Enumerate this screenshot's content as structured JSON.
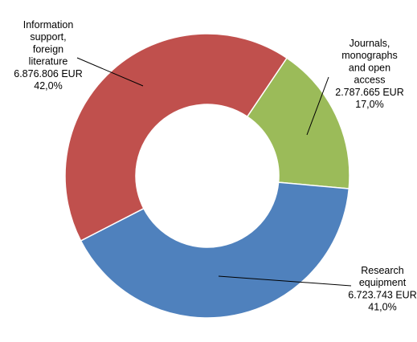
{
  "chart_data": {
    "type": "pie",
    "donut": true,
    "title": "",
    "start_angle_deg": 34,
    "direction": "clockwise",
    "slices": [
      {
        "name": "Journals, monographs and open access",
        "amount": "2.787.665 EUR",
        "value": 2787665,
        "percent": 17.0,
        "percent_label": "17,0%",
        "color": "#9BBB59",
        "label_lines": [
          "Journals,",
          "monographs",
          "and open",
          "access",
          "2.787.665 EUR",
          "17,0%"
        ]
      },
      {
        "name": "Research equipment",
        "amount": "6.723.743 EUR",
        "value": 6723743,
        "percent": 41.0,
        "percent_label": "41,0%",
        "color": "#4F81BD",
        "label_lines": [
          "Research",
          "equipment",
          "6.723.743 EUR",
          "41,0%"
        ]
      },
      {
        "name": "Information support, foreign literature",
        "amount": "6.876.806 EUR",
        "value": 6876806,
        "percent": 42.0,
        "percent_label": "42,0%",
        "color": "#C0504D",
        "label_lines": [
          "Information",
          "support,",
          "foreign",
          "literature",
          "6.876.806 EUR",
          "42,0%"
        ]
      }
    ],
    "legend": "none",
    "grid": false
  }
}
